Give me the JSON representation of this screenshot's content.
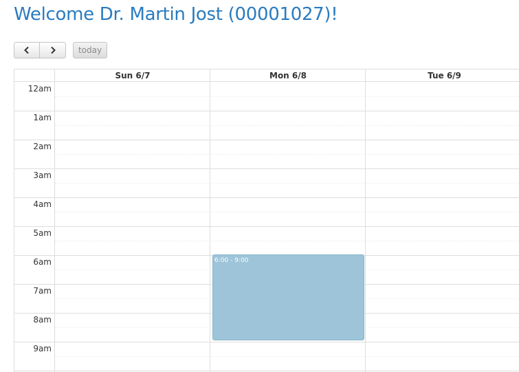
{
  "page": {
    "title": "Welcome Dr. Martin Jost (00001027)!"
  },
  "toolbar": {
    "prev_icon": "chevron-left-icon",
    "next_icon": "chevron-right-icon",
    "today_label": "today"
  },
  "calendar": {
    "columns": [
      "Sun 6/7",
      "Mon 6/8",
      "Tue 6/9"
    ],
    "times": [
      "12am",
      "1am",
      "2am",
      "3am",
      "4am",
      "5am",
      "6am",
      "7am",
      "8am",
      "9am"
    ],
    "event": {
      "time_text": "6:00 - 9:00",
      "day": "Mon 6/8",
      "color": "#9dc4d8"
    }
  },
  "colors": {
    "title": "#2a7bbf",
    "grid": "#dddddd"
  }
}
